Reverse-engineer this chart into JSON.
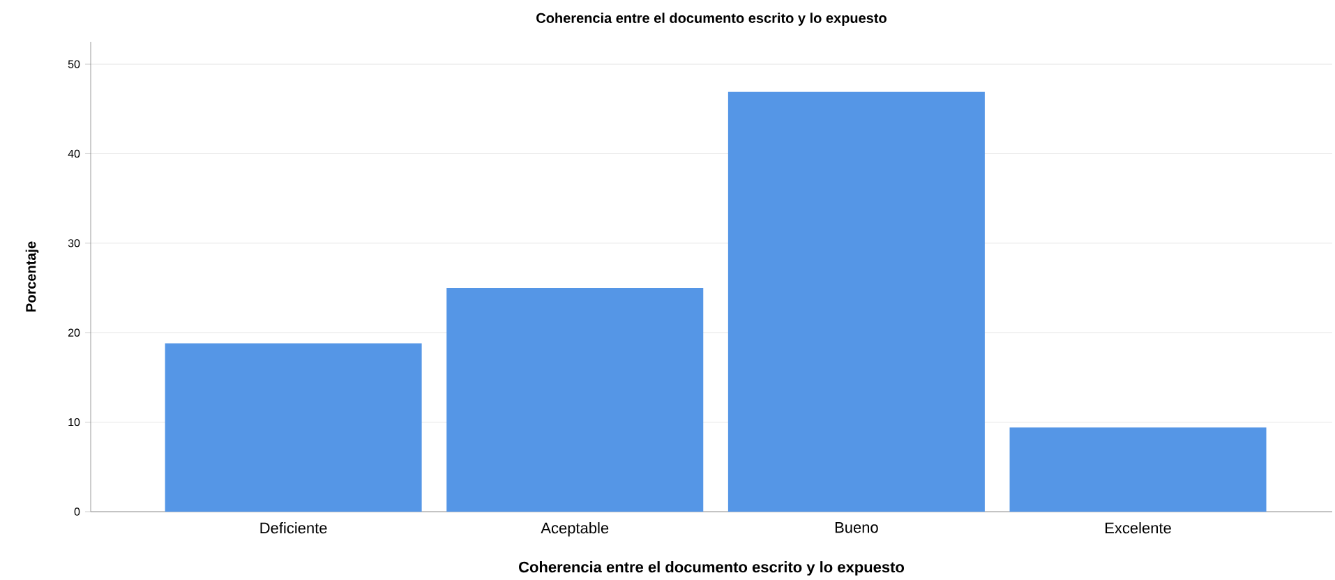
{
  "chart_data": {
    "type": "bar",
    "title": "Coherencia entre el documento escrito y lo expuesto",
    "xlabel": "Coherencia entre el documento escrito y lo expuesto",
    "ylabel": "Porcentaje",
    "categories": [
      "Deficiente",
      "Aceptable",
      "Bueno",
      "Excelente"
    ],
    "values": [
      18.8,
      25.0,
      46.9,
      9.4
    ],
    "color": "#5596e6",
    "ylim": [
      0,
      52.5
    ],
    "yticks": [
      0,
      10,
      20,
      30,
      40,
      50
    ],
    "grid": "y"
  }
}
